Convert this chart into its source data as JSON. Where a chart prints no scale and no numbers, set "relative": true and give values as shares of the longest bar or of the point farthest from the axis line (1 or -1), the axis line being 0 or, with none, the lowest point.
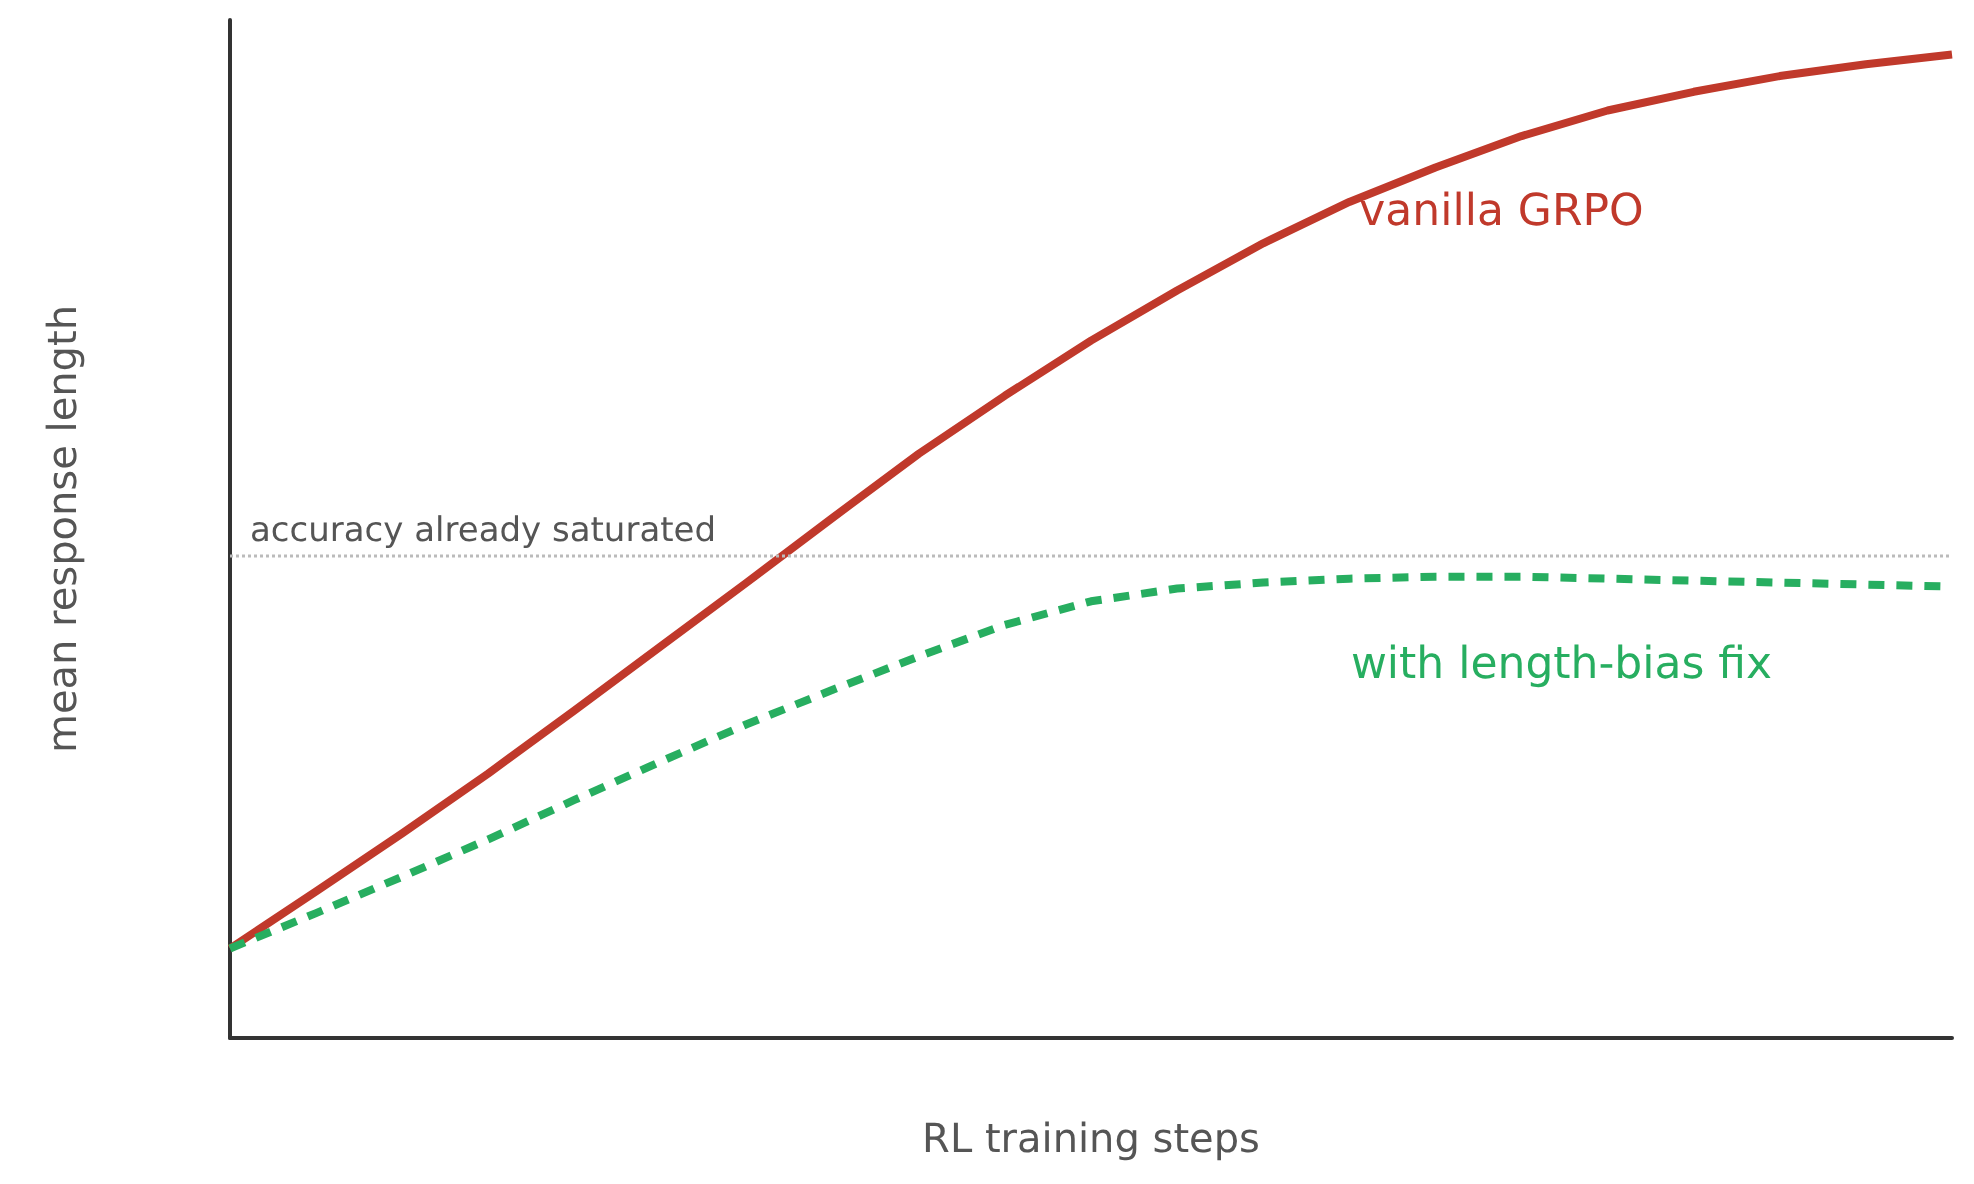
{
  "chart_data": {
    "type": "line",
    "xlabel": "RL training steps",
    "ylabel": "mean response length",
    "relative": true,
    "legend": false,
    "grid": false,
    "categories": [
      null,
      null,
      null,
      null,
      null,
      null,
      null,
      null,
      null,
      null,
      null,
      null,
      null,
      null,
      null,
      null,
      null,
      null,
      null,
      null,
      null
    ],
    "series": [
      {
        "name": "vanilla GRPO",
        "color": "#c0392b",
        "line_style": "solid",
        "values": [
          0.091,
          0.149,
          0.208,
          0.269,
          0.333,
          0.398,
          0.463,
          0.529,
          0.594,
          0.653,
          0.709,
          0.76,
          0.808,
          0.85,
          0.885,
          0.917,
          0.943,
          0.962,
          0.978,
          0.99,
          1
        ]
      },
      {
        "name": "with length-bias fix",
        "color": "#27ae60",
        "line_style": "dashed",
        "values": [
          0.091,
          0.127,
          0.164,
          0.202,
          0.242,
          0.281,
          0.319,
          0.354,
          0.388,
          0.42,
          0.444,
          0.457,
          0.463,
          0.467,
          0.469,
          0.469,
          0.467,
          0.465,
          0.463,
          0.461,
          0.459
        ]
      }
    ],
    "marker": "none",
    "ref_lines": [
      {
        "axis": "y",
        "value": 0.49,
        "label": "accuracy already saturated",
        "color": "#bbbbbb",
        "line_style": "dotted"
      }
    ]
  }
}
